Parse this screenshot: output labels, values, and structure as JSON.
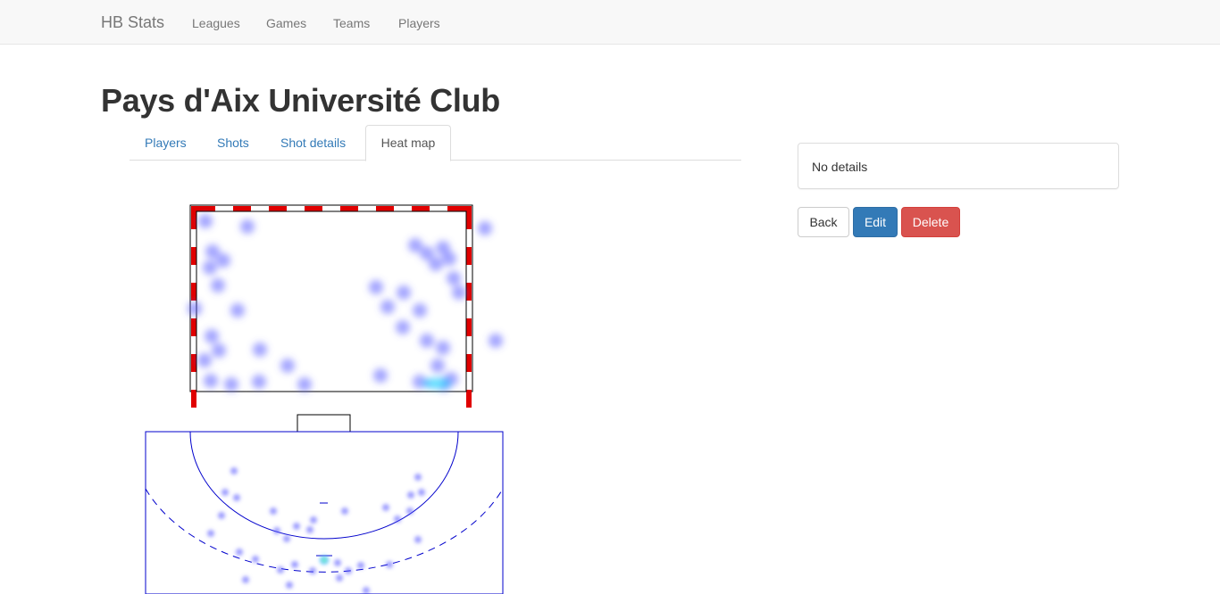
{
  "navbar": {
    "brand": "HB Stats",
    "links": [
      "Leagues",
      "Games",
      "Teams",
      "Players"
    ]
  },
  "page": {
    "title": "Pays d'Aix Université Club"
  },
  "tabs": [
    {
      "label": "Players",
      "active": false
    },
    {
      "label": "Shots",
      "active": false
    },
    {
      "label": "Shot details",
      "active": false
    },
    {
      "label": "Heat map",
      "active": true
    }
  ],
  "details": {
    "text": "No details"
  },
  "buttons": {
    "back": "Back",
    "edit": "Edit",
    "delete": "Delete"
  },
  "colors": {
    "goal_post_red": "#e00000",
    "court_line": "#0000cc",
    "heat_point": "#5a5cff",
    "heat_hot": "#6cf3ff",
    "edit_blue": "#337ab7",
    "delete_red": "#d9534f"
  }
}
